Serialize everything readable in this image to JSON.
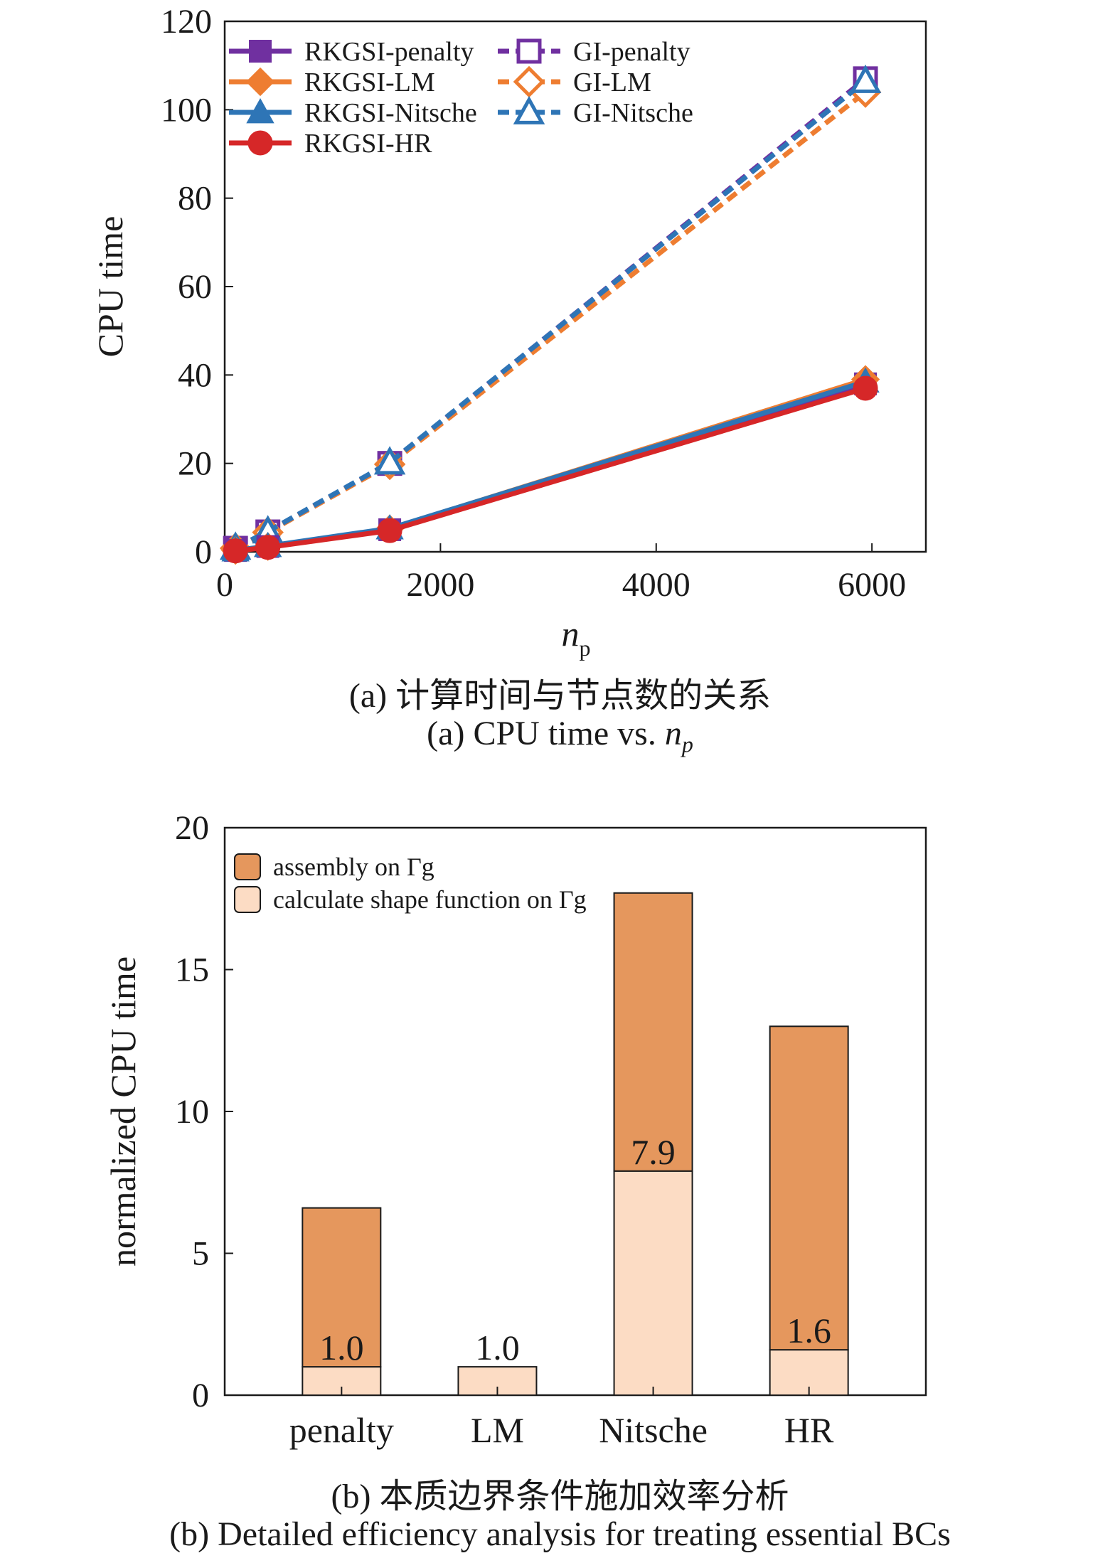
{
  "chart_data": [
    {
      "type": "line",
      "xlabel": "n",
      "xlabel_sub": "p",
      "ylabel": "CPU time",
      "xlim": [
        0,
        6500
      ],
      "ylim": [
        0,
        120
      ],
      "xticks": [
        "0",
        "2000",
        "4000",
        "6000"
      ],
      "yticks": [
        "0",
        "20",
        "40",
        "60",
        "80",
        "100",
        "120"
      ],
      "grid": false,
      "legend_position": "top-left",
      "series": [
        {
          "name": "RKGSI-penalty",
          "x": [
            100,
            400,
            1530,
            5940
          ],
          "y": [
            0.3,
            1.2,
            5.0,
            38.0
          ],
          "color": "#7030a0",
          "marker": "square",
          "filled": true,
          "dashed": false
        },
        {
          "name": "RKGSI-LM",
          "x": [
            100,
            400,
            1530,
            5940
          ],
          "y": [
            0.3,
            1.2,
            5.2,
            39.0
          ],
          "color": "#ee7d31",
          "marker": "diamond",
          "filled": true,
          "dashed": false
        },
        {
          "name": "RKGSI-Nitsche",
          "x": [
            100,
            400,
            1530,
            5940
          ],
          "y": [
            0.3,
            1.3,
            5.3,
            38.5
          ],
          "color": "#2e75b6",
          "marker": "triangle",
          "filled": true,
          "dashed": false
        },
        {
          "name": "RKGSI-HR",
          "x": [
            100,
            400,
            1530,
            5940
          ],
          "y": [
            0.2,
            1.0,
            4.8,
            37.0
          ],
          "color": "#d62728",
          "marker": "circle",
          "filled": true,
          "dashed": false
        },
        {
          "name": "GI-penalty",
          "x": [
            100,
            400,
            1530,
            5940
          ],
          "y": [
            0.8,
            4.5,
            20.0,
            107.0
          ],
          "color": "#7030a0",
          "marker": "square",
          "filled": false,
          "dashed": true
        },
        {
          "name": "GI-LM",
          "x": [
            100,
            400,
            1530,
            5940
          ],
          "y": [
            0.8,
            4.4,
            19.8,
            104.0
          ],
          "color": "#ee7d31",
          "marker": "diamond",
          "filled": false,
          "dashed": true
        },
        {
          "name": "GI-Nitsche",
          "x": [
            100,
            400,
            1530,
            5940
          ],
          "y": [
            0.9,
            4.6,
            20.2,
            106.5
          ],
          "color": "#2e75b6",
          "marker": "triangle",
          "filled": false,
          "dashed": true
        }
      ]
    },
    {
      "type": "bar",
      "stacked": true,
      "ylabel": "normalized CPU time",
      "ylim": [
        0,
        20
      ],
      "yticks": [
        "0",
        "5",
        "10",
        "15",
        "20"
      ],
      "categories": [
        "penalty",
        "LM",
        "Nitsche",
        "HR"
      ],
      "legend_position": "top-left",
      "series": [
        {
          "name": "calculate shape function on Γg",
          "values": [
            1.0,
            1.0,
            7.9,
            1.6
          ],
          "color": "#fcdcc4"
        },
        {
          "name": "assembly on Γg",
          "values": [
            5.6,
            0.0,
            9.8,
            11.4
          ],
          "color": "#e5975d"
        }
      ],
      "data_labels": [
        "1.0",
        "1.0",
        "7.9",
        "1.6"
      ]
    }
  ],
  "captions": {
    "a_cn": "(a) 计算时间与节点数的关系",
    "a_en_prefix": "(a) CPU time vs. ",
    "a_en_var": "n",
    "a_en_sub": "p",
    "b_cn": "(b) 本质边界条件施加效率分析",
    "b_en": "(b) Detailed efficiency analysis for treating essential BCs"
  }
}
